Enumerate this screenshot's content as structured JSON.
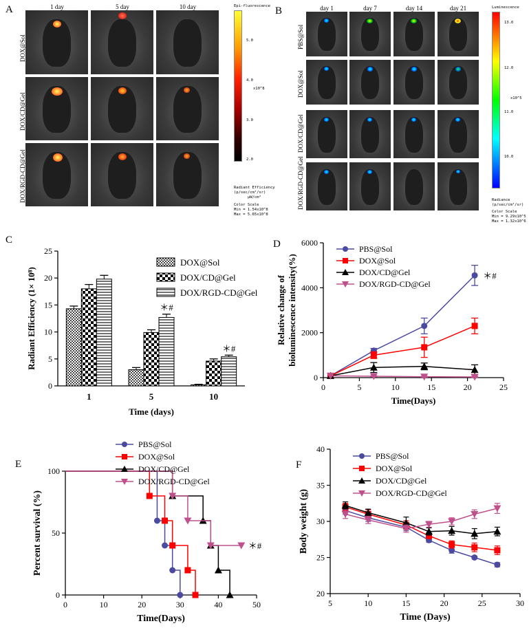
{
  "panelA": {
    "label": "A",
    "columns": [
      "1 day",
      "5 day",
      "10 day"
    ],
    "rows": [
      "DOX@Sol",
      "DOX/CD@Gel",
      "DOX/RGD-CD@Gel"
    ],
    "scale": {
      "title": "Epi-fluorescence",
      "ticks": [
        "5.0",
        "4.0",
        "3.0",
        "2.0"
      ],
      "exponent": "x10^8",
      "unit1": "Radiant Efficiency",
      "unit2": "(p/sec/cm²/sr)",
      "unit3": "μW/cm²",
      "color_scale": "Color Scale",
      "min": "Min = 1.54x10^8",
      "max": "Max = 5.65x10^8",
      "colors": [
        "#ffff33",
        "#ff3300",
        "#000000"
      ]
    }
  },
  "panelB": {
    "label": "B",
    "columns": [
      "day 1",
      "day 7",
      "day 14",
      "day 21"
    ],
    "rows": [
      "PBS@Sol",
      "DOX@Sol",
      "DOX/CD@Gel",
      "DOX/RGD-CD@Gel"
    ],
    "scale": {
      "title": "Luminescence",
      "ticks": [
        "13.0",
        "12.0",
        "11.0",
        "10.0"
      ],
      "exponent": "x10^5",
      "unit1": "Radiance",
      "unit2": "(p/sec/cm²/sr)",
      "color_scale": "Color Scale",
      "min": "Min = 9.29x10^5",
      "max": "Max = 1.32x10^6",
      "colors": [
        "#ff0000",
        "#ffff00",
        "#00ff00",
        "#00ffff",
        "#0000ff"
      ]
    }
  },
  "chart_data": [
    {
      "id": "C",
      "type": "bar",
      "panel_label": "C",
      "categories": [
        "1",
        "5",
        "10"
      ],
      "series": [
        {
          "name": "DOX@Sol",
          "values": [
            14.3,
            3.0,
            0.2
          ],
          "errors": [
            0.5,
            0.4,
            0.1
          ]
        },
        {
          "name": "DOX/CD@Gel",
          "values": [
            18.0,
            9.9,
            4.6
          ],
          "errors": [
            0.8,
            0.5,
            0.4
          ]
        },
        {
          "name": "DOX/RGD-CD@Gel",
          "values": [
            19.8,
            12.7,
            5.4
          ],
          "errors": [
            0.7,
            0.6,
            0.3
          ]
        }
      ],
      "annotations": [
        {
          "category": "5",
          "text": "＊#"
        },
        {
          "category": "10",
          "text": "＊#"
        }
      ],
      "xlabel": "Time (days)",
      "ylabel": "Radiant Efficiency (1× 10⁸)",
      "ylim": [
        0,
        25
      ],
      "yticks": [
        "0",
        "5",
        "10",
        "15",
        "20",
        "25"
      ]
    },
    {
      "id": "D",
      "type": "line",
      "panel_label": "D",
      "series": [
        {
          "name": "PBS@Sol",
          "color": "#4b4aa0",
          "marker": "circle",
          "x": [
            1,
            7,
            14,
            21
          ],
          "y": [
            80,
            1200,
            2300,
            4550
          ],
          "err": [
            0,
            100,
            350,
            450
          ]
        },
        {
          "name": "DOX@Sol",
          "color": "#ff0000",
          "marker": "square",
          "x": [
            1,
            7,
            14,
            21
          ],
          "y": [
            80,
            1000,
            1350,
            2300
          ],
          "err": [
            0,
            150,
            450,
            350
          ]
        },
        {
          "name": "DOX/CD@Gel",
          "color": "#000000",
          "marker": "triangle-up",
          "x": [
            1,
            7,
            14,
            21
          ],
          "y": [
            80,
            450,
            500,
            350
          ],
          "err": [
            0,
            220,
            150,
            220
          ]
        },
        {
          "name": "DOX/RGD-CD@Gel",
          "color": "#c0508c",
          "marker": "triangle-down",
          "x": [
            1,
            7,
            14,
            21
          ],
          "y": [
            80,
            60,
            40,
            30
          ],
          "err": [
            0,
            20,
            20,
            20
          ]
        }
      ],
      "annotation": "＊#",
      "xlabel": "Time(Days)",
      "ylabel_line1": "Relative change of",
      "ylabel_line2": "bioluminescence intensity(%)",
      "xlim": [
        0,
        25
      ],
      "ylim": [
        0,
        6000
      ],
      "xticks": [
        "0",
        "5",
        "10",
        "15",
        "20",
        "25"
      ],
      "yticks": [
        "0",
        "2000",
        "4000",
        "6000"
      ]
    },
    {
      "id": "E",
      "type": "line",
      "panel_label": "E",
      "series": [
        {
          "name": "PBS@Sol",
          "color": "#4b4aa0",
          "marker": "circle",
          "steps": [
            [
              0,
              100
            ],
            [
              24,
              100
            ],
            [
              24,
              60
            ],
            [
              26,
              60
            ],
            [
              26,
              40
            ],
            [
              28,
              40
            ],
            [
              28,
              20
            ],
            [
              30,
              20
            ],
            [
              30,
              0
            ]
          ],
          "markers": [
            [
              24,
              60
            ],
            [
              26,
              40
            ],
            [
              28,
              20
            ],
            [
              30,
              0
            ]
          ]
        },
        {
          "name": "DOX@Sol",
          "color": "#ff0000",
          "marker": "square",
          "steps": [
            [
              0,
              100
            ],
            [
              22,
              100
            ],
            [
              22,
              80
            ],
            [
              26,
              80
            ],
            [
              26,
              60
            ],
            [
              28,
              60
            ],
            [
              28,
              40
            ],
            [
              32,
              40
            ],
            [
              32,
              20
            ],
            [
              34,
              20
            ],
            [
              34,
              0
            ]
          ],
          "markers": [
            [
              22,
              80
            ],
            [
              26,
              60
            ],
            [
              28,
              40
            ],
            [
              32,
              20
            ],
            [
              34,
              0
            ]
          ]
        },
        {
          "name": "DOX/CD@Gel",
          "color": "#000000",
          "marker": "triangle-up",
          "steps": [
            [
              0,
              100
            ],
            [
              28,
              100
            ],
            [
              28,
              80
            ],
            [
              36,
              80
            ],
            [
              36,
              60
            ],
            [
              38,
              60
            ],
            [
              38,
              40
            ],
            [
              40,
              40
            ],
            [
              40,
              20
            ],
            [
              43,
              20
            ],
            [
              43,
              0
            ]
          ],
          "markers": [
            [
              28,
              80
            ],
            [
              36,
              60
            ],
            [
              38,
              40
            ],
            [
              40,
              20
            ],
            [
              43,
              0
            ]
          ]
        },
        {
          "name": "DOX/RGD-CD@Gel",
          "color": "#c0508c",
          "marker": "triangle-down",
          "steps": [
            [
              0,
              100
            ],
            [
              28,
              100
            ],
            [
              28,
              80
            ],
            [
              32,
              80
            ],
            [
              32,
              60
            ],
            [
              38,
              60
            ],
            [
              38,
              40
            ],
            [
              46,
              40
            ]
          ],
          "markers": [
            [
              28,
              80
            ],
            [
              32,
              60
            ],
            [
              38,
              40
            ],
            [
              46,
              40
            ]
          ]
        }
      ],
      "annotation": "＊#",
      "xlabel": "Time(Days)",
      "ylabel": "Percent survival (%)",
      "xlim": [
        0,
        50
      ],
      "ylim": [
        0,
        100
      ],
      "xticks": [
        "0",
        "10",
        "20",
        "30",
        "40",
        "50"
      ],
      "yticks": [
        "0",
        "50",
        "100"
      ]
    },
    {
      "id": "F",
      "type": "line",
      "panel_label": "F",
      "series": [
        {
          "name": "PBS@Sol",
          "color": "#4b4aa0",
          "marker": "circle",
          "x": [
            7,
            10,
            15,
            18,
            21,
            24,
            27
          ],
          "y": [
            31.5,
            30.5,
            29.2,
            27.4,
            26.0,
            25.0,
            24.0
          ],
          "err": [
            0.5,
            0.5,
            0.5,
            0.3,
            0.4,
            0.2,
            0.3
          ]
        },
        {
          "name": "DOX@Sol",
          "color": "#ff0000",
          "marker": "square",
          "x": [
            7,
            10,
            15,
            18,
            21,
            24,
            27
          ],
          "y": [
            32.0,
            31.0,
            29.5,
            28.0,
            26.8,
            26.4,
            26.0
          ],
          "err": [
            0.5,
            0.6,
            0.6,
            0.4,
            0.5,
            0.6,
            0.6
          ]
        },
        {
          "name": "DOX/CD@Gel",
          "color": "#000000",
          "marker": "triangle-up",
          "x": [
            7,
            10,
            15,
            18,
            21,
            24,
            27
          ],
          "y": [
            32.2,
            31.2,
            29.8,
            28.6,
            28.7,
            28.3,
            28.6
          ],
          "err": [
            0.5,
            0.5,
            0.8,
            0.5,
            0.6,
            0.7,
            0.6
          ]
        },
        {
          "name": "DOX/RGD-CD@Gel",
          "color": "#c0508c",
          "marker": "triangle-down",
          "x": [
            7,
            10,
            15,
            18,
            21,
            24,
            27
          ],
          "y": [
            31.0,
            30.2,
            29.0,
            29.6,
            30.0,
            31.0,
            31.8
          ],
          "err": [
            0.6,
            0.5,
            0.5,
            0.4,
            0.5,
            0.6,
            0.7
          ]
        }
      ],
      "xlabel": "Time (Days)",
      "ylabel": "Body weight (g)",
      "xlim": [
        5,
        30
      ],
      "ylim": [
        20,
        40
      ],
      "xticks": [
        "5",
        "10",
        "15",
        "20",
        "25",
        "30"
      ],
      "yticks": [
        "20",
        "25",
        "30",
        "35",
        "40"
      ]
    }
  ]
}
